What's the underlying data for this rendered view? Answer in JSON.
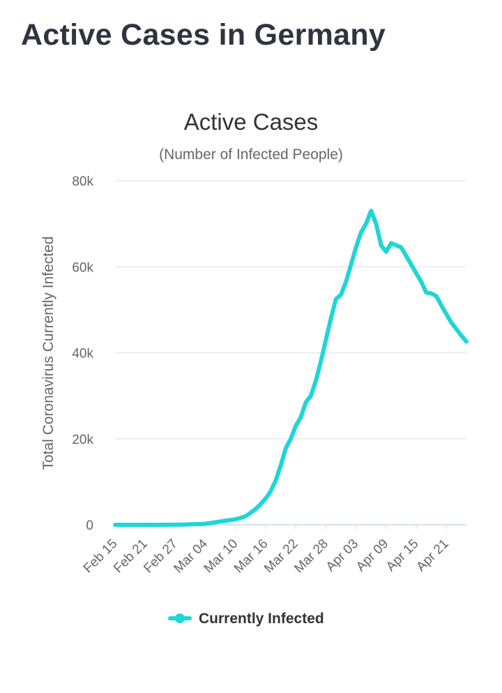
{
  "page": {
    "title": "Active Cases in Germany"
  },
  "colors": {
    "series": "#1ed6d6",
    "grid": "#e6e6e6",
    "axis": "#ccd6eb"
  },
  "chart_data": {
    "type": "line",
    "title": "Active Cases",
    "subtitle": "(Number of Infected People)",
    "xlabel": "",
    "ylabel": "Total Coronavirus Currently Infected",
    "ylim": [
      0,
      80000
    ],
    "y_ticks": [
      0,
      20000,
      40000,
      60000,
      80000
    ],
    "y_tick_labels": [
      "0",
      "20k",
      "40k",
      "60k",
      "80k"
    ],
    "x_tick_labels": [
      "Feb 15",
      "Feb 21",
      "Feb 27",
      "Mar 04",
      "Mar 10",
      "Mar 16",
      "Mar 22",
      "Mar 28",
      "Apr 03",
      "Apr 09",
      "Apr 15",
      "Apr 21"
    ],
    "grid": true,
    "legend": "bottom-center",
    "series": [
      {
        "name": "Currently Infected",
        "x": [
          "Feb 15",
          "Feb 16",
          "Feb 17",
          "Feb 18",
          "Feb 19",
          "Feb 20",
          "Feb 21",
          "Feb 22",
          "Feb 23",
          "Feb 24",
          "Feb 25",
          "Feb 26",
          "Feb 27",
          "Feb 28",
          "Feb 29",
          "Mar 01",
          "Mar 02",
          "Mar 03",
          "Mar 04",
          "Mar 05",
          "Mar 06",
          "Mar 07",
          "Mar 08",
          "Mar 09",
          "Mar 10",
          "Mar 11",
          "Mar 12",
          "Mar 13",
          "Mar 14",
          "Mar 15",
          "Mar 16",
          "Mar 17",
          "Mar 18",
          "Mar 19",
          "Mar 20",
          "Mar 21",
          "Mar 22",
          "Mar 23",
          "Mar 24",
          "Mar 25",
          "Mar 26",
          "Mar 27",
          "Mar 28",
          "Mar 29",
          "Mar 30",
          "Mar 31",
          "Apr 01",
          "Apr 02",
          "Apr 03",
          "Apr 04",
          "Apr 05",
          "Apr 06",
          "Apr 07",
          "Apr 08",
          "Apr 09",
          "Apr 10",
          "Apr 11",
          "Apr 12",
          "Apr 13",
          "Apr 14",
          "Apr 15",
          "Apr 16",
          "Apr 17",
          "Apr 18",
          "Apr 19",
          "Apr 20",
          "Apr 21",
          "Apr 22",
          "Apr 23",
          "Apr 24",
          "Apr 25"
        ],
        "values": [
          8,
          8,
          8,
          8,
          8,
          8,
          8,
          8,
          8,
          8,
          10,
          20,
          30,
          50,
          70,
          110,
          140,
          180,
          240,
          400,
          600,
          780,
          950,
          1100,
          1300,
          1600,
          2000,
          2800,
          3700,
          4800,
          6100,
          7800,
          10300,
          13800,
          17800,
          20000,
          23000,
          25000,
          28500,
          30000,
          33500,
          38000,
          43000,
          48000,
          52500,
          53500,
          56500,
          60500,
          64500,
          68000,
          70000,
          73000,
          70000,
          65000,
          63500,
          65500,
          65000,
          64500,
          62500,
          60500,
          58500,
          56500,
          54000,
          53800,
          53200,
          51000,
          49000,
          47000,
          45500,
          44000,
          42600
        ]
      }
    ]
  }
}
